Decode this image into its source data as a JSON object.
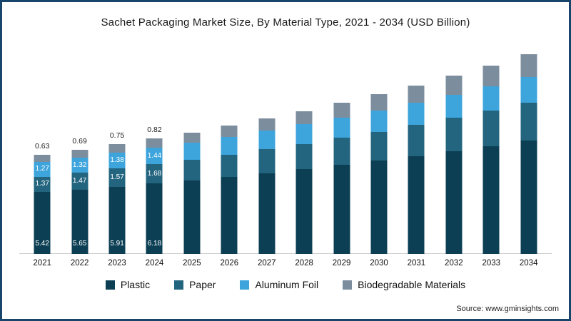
{
  "title": "Sachet Packaging Market Size, By Material Type, 2021 - 2034 (USD Billion)",
  "source": "Source: www.gminsights.com",
  "colors": {
    "frame": "#17456b",
    "axis": "#cccccc",
    "inside_label": "#ffffff",
    "top_label": "#222222"
  },
  "chart_data": {
    "type": "bar",
    "stacked": true,
    "title": "Sachet Packaging Market Size, By Material Type, 2021 - 2034 (USD Billion)",
    "xlabel": "",
    "ylabel": "USD Billion",
    "grid": false,
    "legend_position": "bottom",
    "ylim": [
      0,
      18
    ],
    "categories": [
      "2021",
      "2022",
      "2023",
      "2024",
      "2025",
      "2026",
      "2027",
      "2028",
      "2029",
      "2030",
      "2031",
      "2032",
      "2033",
      "2034"
    ],
    "series": [
      {
        "name": "Plastic",
        "color": "#0c3f54",
        "values": [
          5.42,
          5.65,
          5.91,
          6.18,
          6.47,
          6.78,
          7.1,
          7.44,
          7.8,
          8.18,
          8.58,
          9.0,
          9.45,
          9.92
        ]
      },
      {
        "name": "Paper",
        "color": "#23647f",
        "values": [
          1.37,
          1.47,
          1.57,
          1.68,
          1.8,
          1.93,
          2.07,
          2.22,
          2.38,
          2.55,
          2.73,
          2.93,
          3.14,
          3.37
        ]
      },
      {
        "name": "Aluminum Foil",
        "color": "#3da4dc",
        "values": [
          1.27,
          1.32,
          1.38,
          1.44,
          1.5,
          1.57,
          1.64,
          1.71,
          1.79,
          1.87,
          1.95,
          2.04,
          2.13,
          2.23
        ]
      },
      {
        "name": "Biodegradable Materials",
        "color": "#7c8e9e",
        "values": [
          0.63,
          0.69,
          0.75,
          0.82,
          0.9,
          0.98,
          1.07,
          1.17,
          1.28,
          1.4,
          1.53,
          1.67,
          1.83,
          2.0
        ]
      }
    ],
    "labeled_categories": [
      "2021",
      "2022",
      "2023",
      "2024"
    ]
  }
}
